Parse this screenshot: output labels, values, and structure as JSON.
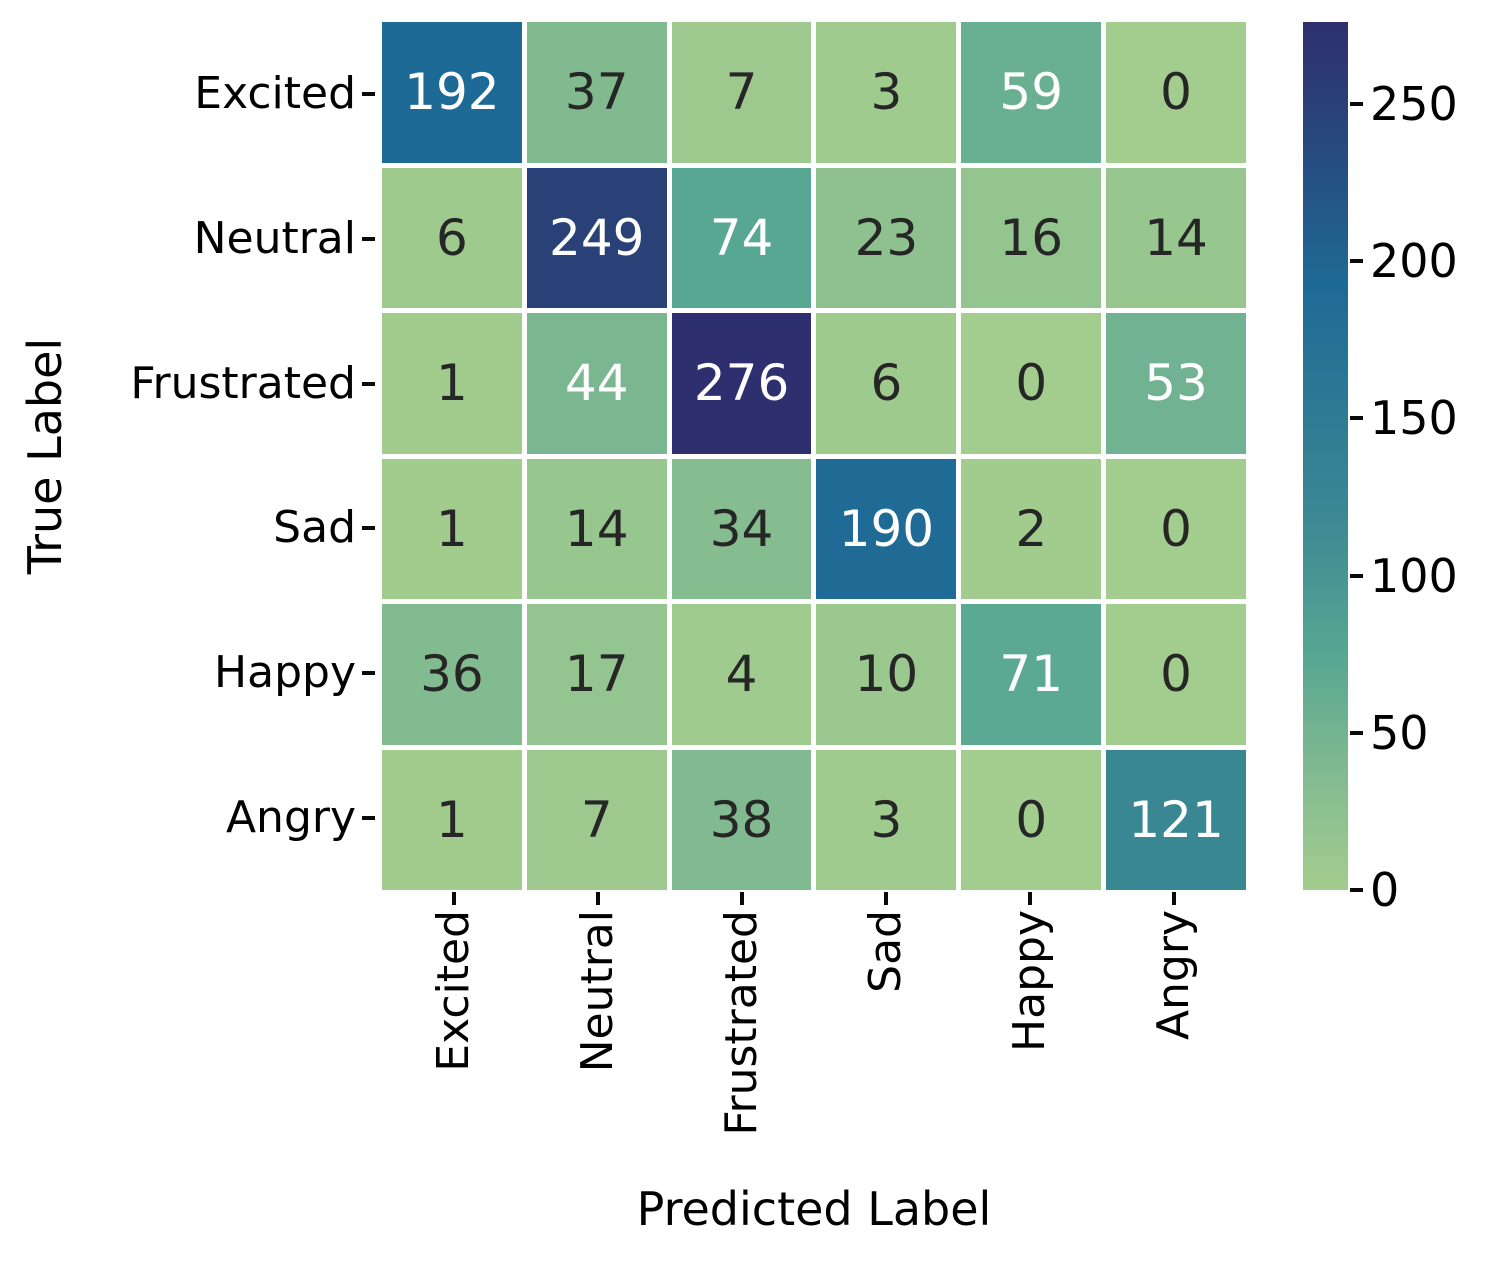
{
  "chart_data": {
    "type": "heatmap",
    "xlabel": "Predicted Label",
    "ylabel": "True Label",
    "x_categories": [
      "Excited",
      "Neutral",
      "Frustrated",
      "Sad",
      "Happy",
      "Angry"
    ],
    "y_categories": [
      "Excited",
      "Neutral",
      "Frustrated",
      "Sad",
      "Happy",
      "Angry"
    ],
    "matrix": [
      [
        192,
        37,
        7,
        3,
        59,
        0
      ],
      [
        6,
        249,
        74,
        23,
        16,
        14
      ],
      [
        1,
        44,
        276,
        6,
        0,
        53
      ],
      [
        1,
        14,
        34,
        190,
        2,
        0
      ],
      [
        36,
        17,
        4,
        10,
        71,
        0
      ],
      [
        1,
        7,
        38,
        3,
        0,
        121
      ]
    ],
    "vmin": 0,
    "vmax": 276,
    "colorbar_ticks": [
      0,
      50,
      100,
      150,
      200,
      250
    ],
    "colormap_anchors": [
      {
        "value": 0,
        "color": "#a3cd8e"
      },
      {
        "value": 37,
        "color": "#82ba90"
      },
      {
        "value": 74,
        "color": "#58a792"
      },
      {
        "value": 121,
        "color": "#3a8794"
      },
      {
        "value": 192,
        "color": "#1e6a96"
      },
      {
        "value": 249,
        "color": "#2a4178"
      },
      {
        "value": 276,
        "color": "#2e2f6e"
      }
    ],
    "annot_color_dark": "#262626",
    "annot_color_light": "#ffffff",
    "luminance_threshold": 0.408,
    "grid_gap_color": "#ffffff",
    "legend_position": "right-colorbar",
    "grid": "off"
  }
}
